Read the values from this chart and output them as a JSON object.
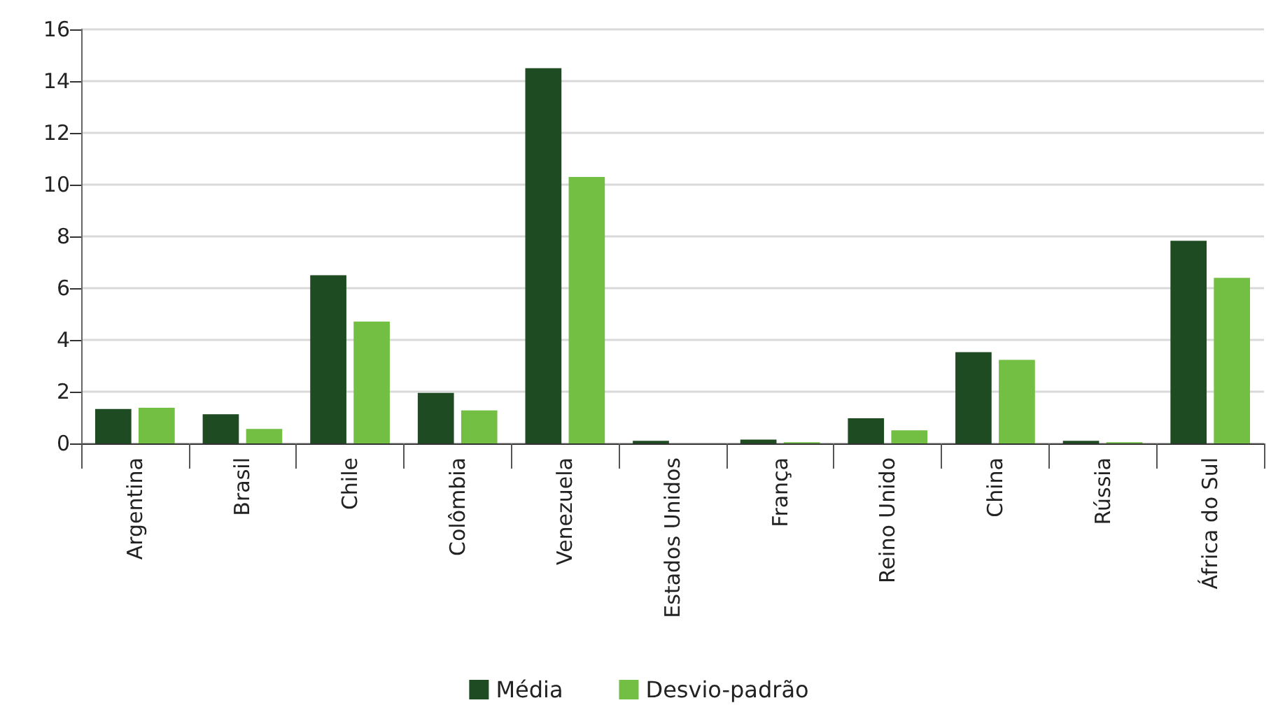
{
  "chart_data": {
    "type": "bar",
    "categories": [
      "Argentina",
      "Brasil",
      "Chile",
      "Colômbia",
      "Venezuela",
      "Estados Unidos",
      "França",
      "Reino Unido",
      "China",
      "Rússia",
      "África do Sul"
    ],
    "series": [
      {
        "name": "Média",
        "color": "#1e4b21",
        "values": [
          1.33,
          1.13,
          6.5,
          1.95,
          14.5,
          0.1,
          0.15,
          0.97,
          3.53,
          0.1,
          7.83
        ]
      },
      {
        "name": "Desvio-padrão",
        "color": "#72bf44",
        "values": [
          1.38,
          0.56,
          4.71,
          1.28,
          10.3,
          0,
          0.05,
          0.51,
          3.23,
          0.05,
          6.4
        ]
      }
    ],
    "ylim": [
      0,
      16
    ],
    "yticks": [
      0,
      2,
      4,
      6,
      8,
      10,
      12,
      14,
      16
    ],
    "grid": "y",
    "legend": "bottom"
  }
}
